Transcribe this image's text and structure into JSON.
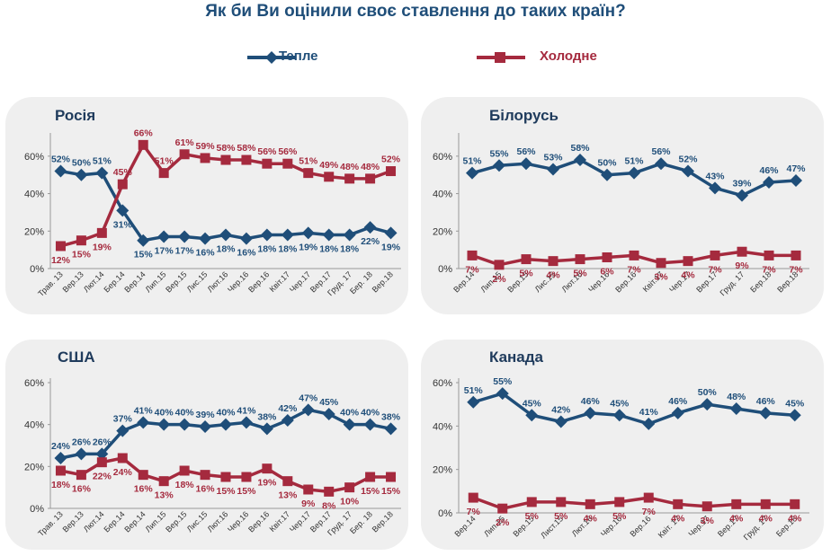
{
  "title": "Як би Ви оцінили своє ставлення до таких країн?",
  "legend": [
    {
      "name": "Тепле",
      "color": "#1f4e79",
      "marker": "diamond"
    },
    {
      "name": "Холодне",
      "color": "#a52a3e",
      "marker": "square"
    }
  ],
  "chart_data": [
    {
      "type": "line",
      "title": "Росія",
      "categories": [
        "Трав. 13",
        "Вер.13",
        "Лют.14",
        "Бер.14",
        "Вер.14",
        "Лип.15",
        "Вер.15",
        "Лис.15",
        "Лют.16",
        "Чер.16",
        "Вер.16",
        "Квіт.17",
        "Чер.17",
        "Вер.17",
        "Груд. 17",
        "Бер. 18",
        "Вер.18"
      ],
      "ylim": [
        0,
        70
      ],
      "yticks": [
        "0%",
        "20%",
        "40%",
        "60%"
      ],
      "series": [
        {
          "name": "Тепле",
          "values": [
            52,
            50,
            51,
            31,
            15,
            17,
            17,
            16,
            18,
            16,
            18,
            18,
            19,
            18,
            18,
            22,
            19
          ],
          "labels": [
            "52%",
            "50%",
            "51%",
            "31%",
            "15%",
            "17%",
            "17%",
            "16%",
            "18%",
            "16%",
            "18%",
            "18%",
            "19%",
            "18%",
            "18%",
            "22%",
            "19%"
          ]
        },
        {
          "name": "Холодне",
          "values": [
            12,
            15,
            19,
            45,
            66,
            51,
            61,
            59,
            58,
            58,
            56,
            56,
            51,
            49,
            48,
            48,
            52
          ],
          "labels": [
            "12%",
            "15%",
            "19%",
            "45%",
            "66%",
            "51%",
            "61%",
            "59%",
            "58%",
            "58%",
            "56%",
            "56%",
            "51%",
            "49%",
            "48%",
            "48%",
            "52%"
          ]
        }
      ]
    },
    {
      "type": "line",
      "title": "Білорусь",
      "categories": [
        "Вер.14",
        "Лип.15",
        "Вер.15",
        "Лис.15",
        "Лют.16",
        "Чер.16",
        "Вер.16",
        "Квіт.17",
        "Чер.17",
        "Вер.17",
        "Груд. 17",
        "Бер.18",
        "Вер.18"
      ],
      "ylim": [
        0,
        70
      ],
      "yticks": [
        "0%",
        "20%",
        "40%",
        "60%"
      ],
      "series": [
        {
          "name": "Тепле",
          "values": [
            51,
            55,
            56,
            53,
            58,
            50,
            51,
            56,
            52,
            43,
            39,
            46,
            47
          ],
          "labels": [
            "51%",
            "55%",
            "56%",
            "53%",
            "58%",
            "50%",
            "51%",
            "56%",
            "52%",
            "43%",
            "39%",
            "46%",
            "47%"
          ]
        },
        {
          "name": "Холодне",
          "values": [
            7,
            2,
            5,
            4,
            5,
            6,
            7,
            3,
            4,
            7,
            9,
            7,
            7
          ],
          "labels": [
            "7%",
            "2%",
            "5%",
            "4%",
            "5%",
            "6%",
            "7%",
            "3%",
            "4%",
            "7%",
            "9%",
            "7%",
            "7%"
          ]
        }
      ]
    },
    {
      "type": "line",
      "title": "США",
      "categories": [
        "Трав. 13",
        "Вер.13",
        "Лют.14",
        "Бер.14",
        "Вер.14",
        "Лип.15",
        "Вер.15",
        "Лис.15",
        "Лют.16",
        "Чер.16",
        "Вер.16",
        "Квіт.17",
        "Чер.17",
        "Вер.17",
        "Груд. 17",
        "Бер. 18",
        "Вер.18"
      ],
      "ylim": [
        0,
        60
      ],
      "yticks": [
        "0%",
        "20%",
        "40%",
        "60%"
      ],
      "series": [
        {
          "name": "Тепле",
          "values": [
            24,
            26,
            26,
            37,
            41,
            40,
            40,
            39,
            40,
            41,
            38,
            42,
            47,
            45,
            40,
            40,
            38
          ],
          "labels": [
            "24%",
            "26%",
            "26%",
            "37%",
            "41%",
            "40%",
            "40%",
            "39%",
            "40%",
            "41%",
            "38%",
            "42%",
            "47%",
            "45%",
            "40%",
            "40%",
            "38%"
          ]
        },
        {
          "name": "Холодне",
          "values": [
            18,
            16,
            22,
            24,
            16,
            13,
            18,
            16,
            15,
            15,
            19,
            13,
            9,
            8,
            10,
            15,
            15
          ],
          "labels": [
            "18%",
            "16%",
            "22%",
            "24%",
            "16%",
            "13%",
            "18%",
            "16%",
            "15%",
            "15%",
            "19%",
            "13%",
            "9%",
            "8%",
            "10%",
            "15%",
            "15%"
          ]
        }
      ]
    },
    {
      "type": "line",
      "title": "Канада",
      "categories": [
        "Вер.14",
        "Лип.15",
        "Вер.15",
        "Лист.15",
        "Лют.16",
        "Чер.16",
        "Вер.16",
        "Квіт. 17",
        "Чер.17",
        "Вер.17",
        "Груд. 17",
        "Бер.18"
      ],
      "ylim": [
        0,
        60
      ],
      "yticks": [
        "0%",
        "20%",
        "40%",
        "60%"
      ],
      "series": [
        {
          "name": "Тепле",
          "values": [
            51,
            55,
            45,
            42,
            46,
            45,
            41,
            46,
            50,
            48,
            46,
            45
          ],
          "labels": [
            "51%",
            "55%",
            "45%",
            "42%",
            "46%",
            "45%",
            "41%",
            "46%",
            "50%",
            "48%",
            "46%",
            "45%"
          ]
        },
        {
          "name": "Холодне",
          "values": [
            7,
            2,
            5,
            5,
            4,
            5,
            7,
            4,
            3,
            4,
            4,
            4
          ],
          "labels": [
            "7%",
            "2%",
            "5%",
            "5%",
            "4%",
            "5%",
            "7%",
            "4%",
            "3%",
            "4%",
            "4%",
            "4%"
          ]
        }
      ]
    }
  ]
}
